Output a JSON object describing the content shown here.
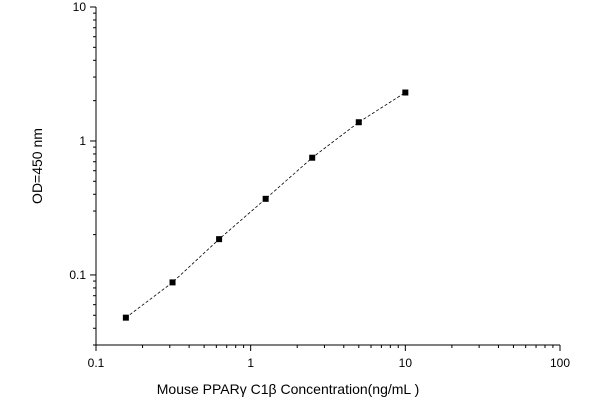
{
  "chart_data": {
    "type": "scatter",
    "xlabel": "Mouse PPARγ  C1β  Concentration(ng/mL )",
    "ylabel": "OD=450 nm",
    "x_scale": "log",
    "y_scale": "log",
    "xlim": [
      0.1,
      100
    ],
    "ylim": [
      0.03,
      10
    ],
    "x_ticks": [
      {
        "value": 0.1,
        "label": "0.1"
      },
      {
        "value": 1,
        "label": "1"
      },
      {
        "value": 10,
        "label": "10"
      },
      {
        "value": 100,
        "label": "100"
      }
    ],
    "y_ticks": [
      {
        "value": 0.1,
        "label": "0.1"
      },
      {
        "value": 1,
        "label": "1"
      },
      {
        "value": 10,
        "label": "10"
      }
    ],
    "grid": false,
    "marker": "square",
    "fit_line": "dashed",
    "series": [
      {
        "x": [
          0.156,
          0.3125,
          0.625,
          1.25,
          2.5,
          5,
          10
        ],
        "y": [
          0.048,
          0.088,
          0.185,
          0.37,
          0.75,
          1.38,
          2.3
        ]
      }
    ],
    "colors": {
      "points": "#000000",
      "line": "#000000",
      "axes": "#000000"
    }
  }
}
